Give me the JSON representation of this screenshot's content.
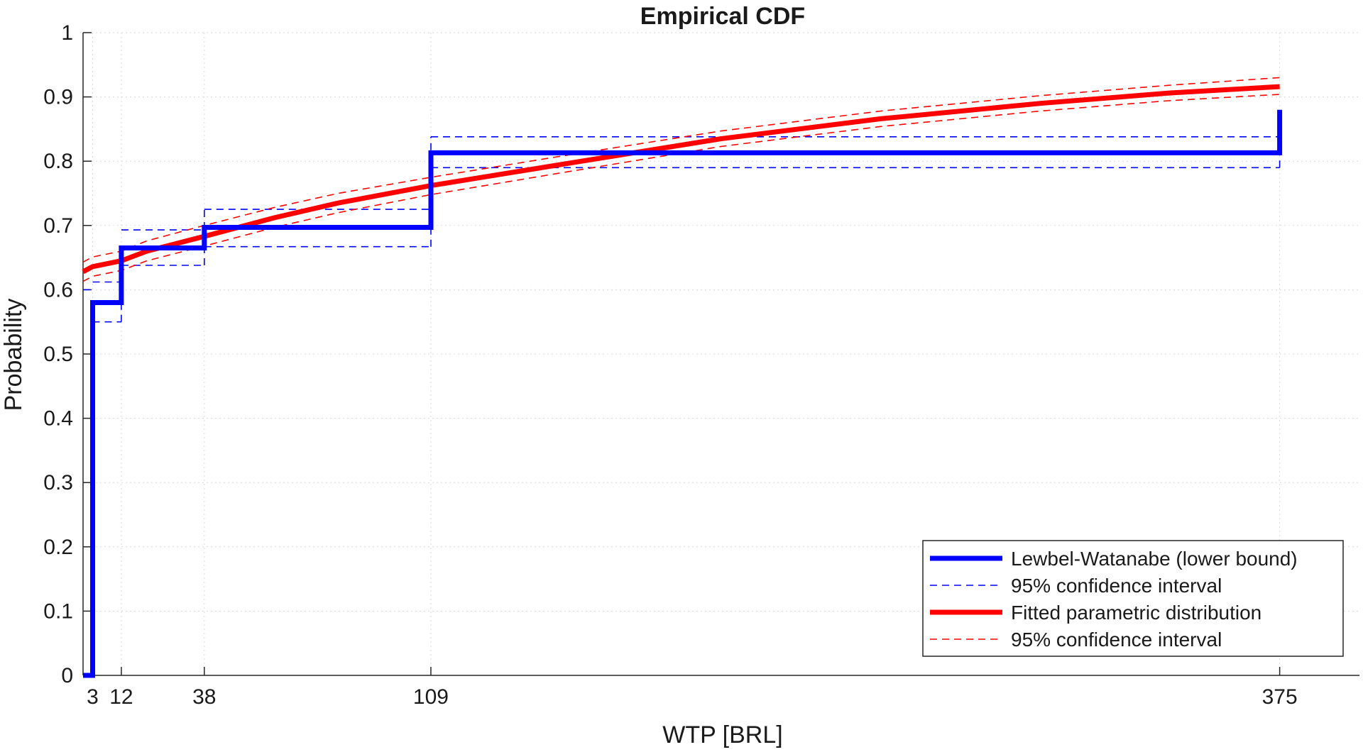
{
  "chart_data": {
    "type": "line",
    "title": "Empirical CDF",
    "xlabel": "WTP [BRL]",
    "ylabel": "Probability",
    "x_ticks": [
      3,
      12,
      38,
      109,
      375
    ],
    "y_ticks": [
      0,
      0.1,
      0.2,
      0.3,
      0.4,
      0.5,
      0.6,
      0.7,
      0.8,
      0.9,
      1
    ],
    "y_tick_labels": [
      "0",
      "0.1",
      "0.2",
      "0.3",
      "0.4",
      "0.5",
      "0.6",
      "0.7",
      "0.8",
      "0.9",
      "1"
    ],
    "xlim": [
      0,
      400
    ],
    "ylim": [
      0,
      1
    ],
    "grid": true,
    "legend_position": "bottom-right",
    "series": [
      {
        "name": "Lewbel-Watanabe (lower bound)",
        "style": "solid-thick",
        "color": "#0000ff",
        "points": [
          [
            0,
            0
          ],
          [
            3,
            0
          ],
          [
            3,
            0.58
          ],
          [
            12,
            0.58
          ],
          [
            12,
            0.665
          ],
          [
            38,
            0.665
          ],
          [
            38,
            0.697
          ],
          [
            109,
            0.697
          ],
          [
            109,
            0.813
          ],
          [
            375,
            0.813
          ],
          [
            375,
            0.88
          ]
        ]
      },
      {
        "name": "95% confidence interval",
        "style": "dashed",
        "color": "#0000ff",
        "segments": [
          [
            [
              0,
              0.6
            ],
            [
              3,
              0.6
            ]
          ],
          [
            [
              3,
              0.612
            ],
            [
              12,
              0.612
            ]
          ],
          [
            [
              3,
              0.55
            ],
            [
              12,
              0.55
            ]
          ],
          [
            [
              12,
              0.693
            ],
            [
              38,
              0.693
            ]
          ],
          [
            [
              12,
              0.638
            ],
            [
              38,
              0.638
            ]
          ],
          [
            [
              38,
              0.725
            ],
            [
              109,
              0.725
            ]
          ],
          [
            [
              38,
              0.667
            ],
            [
              109,
              0.667
            ]
          ],
          [
            [
              109,
              0.838
            ],
            [
              375,
              0.838
            ]
          ],
          [
            [
              109,
              0.79
            ],
            [
              375,
              0.79
            ]
          ],
          [
            [
              12,
              0.55
            ],
            [
              12,
              0.612
            ]
          ],
          [
            [
              38,
              0.638
            ],
            [
              38,
              0.725
            ]
          ],
          [
            [
              109,
              0.667
            ],
            [
              109,
              0.838
            ]
          ],
          [
            [
              375,
              0.79
            ],
            [
              375,
              0.838
            ]
          ]
        ]
      },
      {
        "name": "Fitted parametric distribution",
        "style": "solid-thick",
        "color": "#ff0000",
        "points": [
          [
            0,
            0.628
          ],
          [
            3,
            0.636
          ],
          [
            12,
            0.645
          ],
          [
            20,
            0.66
          ],
          [
            38,
            0.683
          ],
          [
            60,
            0.712
          ],
          [
            80,
            0.735
          ],
          [
            109,
            0.762
          ],
          [
            150,
            0.795
          ],
          [
            200,
            0.835
          ],
          [
            250,
            0.866
          ],
          [
            300,
            0.89
          ],
          [
            340,
            0.906
          ],
          [
            375,
            0.916
          ]
        ]
      },
      {
        "name": "95% confidence interval",
        "style": "dashed",
        "color": "#ff0000",
        "lines": [
          [
            [
              0,
              0.643
            ],
            [
              3,
              0.651
            ],
            [
              12,
              0.66
            ],
            [
              20,
              0.676
            ],
            [
              38,
              0.7
            ],
            [
              60,
              0.728
            ],
            [
              80,
              0.75
            ],
            [
              109,
              0.775
            ],
            [
              150,
              0.808
            ],
            [
              200,
              0.847
            ],
            [
              250,
              0.878
            ],
            [
              300,
              0.902
            ],
            [
              340,
              0.918
            ],
            [
              375,
              0.93
            ]
          ],
          [
            [
              0,
              0.613
            ],
            [
              3,
              0.621
            ],
            [
              12,
              0.63
            ],
            [
              20,
              0.645
            ],
            [
              38,
              0.668
            ],
            [
              60,
              0.697
            ],
            [
              80,
              0.72
            ],
            [
              109,
              0.748
            ],
            [
              150,
              0.782
            ],
            [
              200,
              0.823
            ],
            [
              250,
              0.854
            ],
            [
              300,
              0.878
            ],
            [
              340,
              0.894
            ],
            [
              375,
              0.904
            ]
          ]
        ]
      }
    ],
    "legend": [
      {
        "label": "Lewbel-Watanabe (lower bound)",
        "color": "#0000ff",
        "dash": false
      },
      {
        "label": "95% confidence interval",
        "color": "#0000ff",
        "dash": true
      },
      {
        "label": "Fitted parametric distribution",
        "color": "#ff0000",
        "dash": false
      },
      {
        "label": "95% confidence interval",
        "color": "#ff0000",
        "dash": true
      }
    ]
  }
}
